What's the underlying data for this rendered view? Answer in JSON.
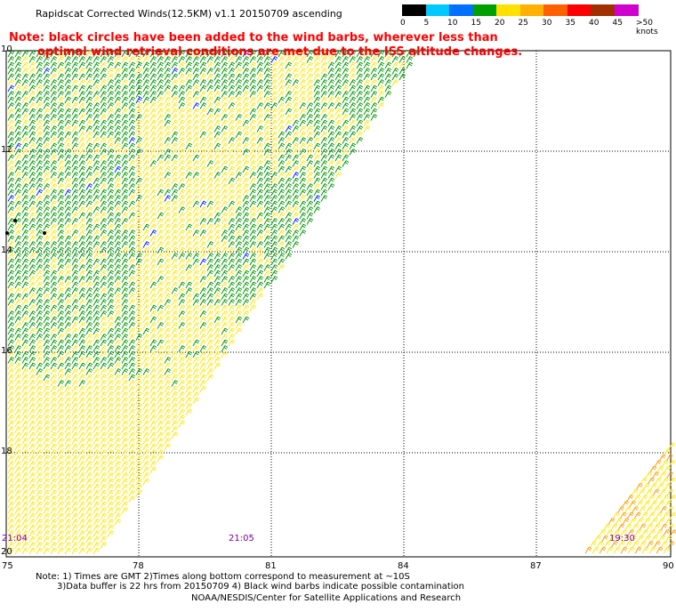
{
  "title": "Rapidscat Corrected Winds(12.5KM) v1.1 20150709 ascending",
  "note": {
    "line1": "Note: black circles have been added to the wind barbs, wherever less than",
    "line2": "optimal wind retrieval conditions are met due to the ISS altitude changes."
  },
  "colorbar": {
    "labels": [
      "0",
      "5",
      "10",
      "15",
      "20",
      "25",
      "30",
      "35",
      "40",
      "45",
      ">50 knots"
    ],
    "colors": [
      "#000000",
      "#00c8ff",
      "#0070ff",
      "#00a000",
      "#ffe000",
      "#ffb000",
      "#ff6000",
      "#ff0000",
      "#a03000",
      "#d000d0",
      "#4000a0"
    ]
  },
  "lat_labels": [
    "10",
    "12",
    "14",
    "16",
    "18",
    "20"
  ],
  "lon_labels": [
    "75",
    "78",
    "81",
    "84",
    "87",
    "90"
  ],
  "time_labels": [
    "21:04",
    "21:05",
    "19:30"
  ],
  "footnote": {
    "line1": "Note: 1) Times are GMT 2)Times along bottom correspond to measurement at ~10S",
    "line2": "3)Data buffer is 22 hrs from 20150709 4) Black wind barbs indicate possible contamination"
  },
  "credit": "NOAA/NESDIS/Center for Satellite Applications and Research",
  "legend_colors": {
    "barb_green": "#009a00",
    "barb_yellow": "#ffe600",
    "barb_blue": "#0028ff",
    "barb_orange": "#ff9a00",
    "grid": "#000000",
    "note_red": "#ff0000",
    "time_purple": "#7a00a8"
  }
}
